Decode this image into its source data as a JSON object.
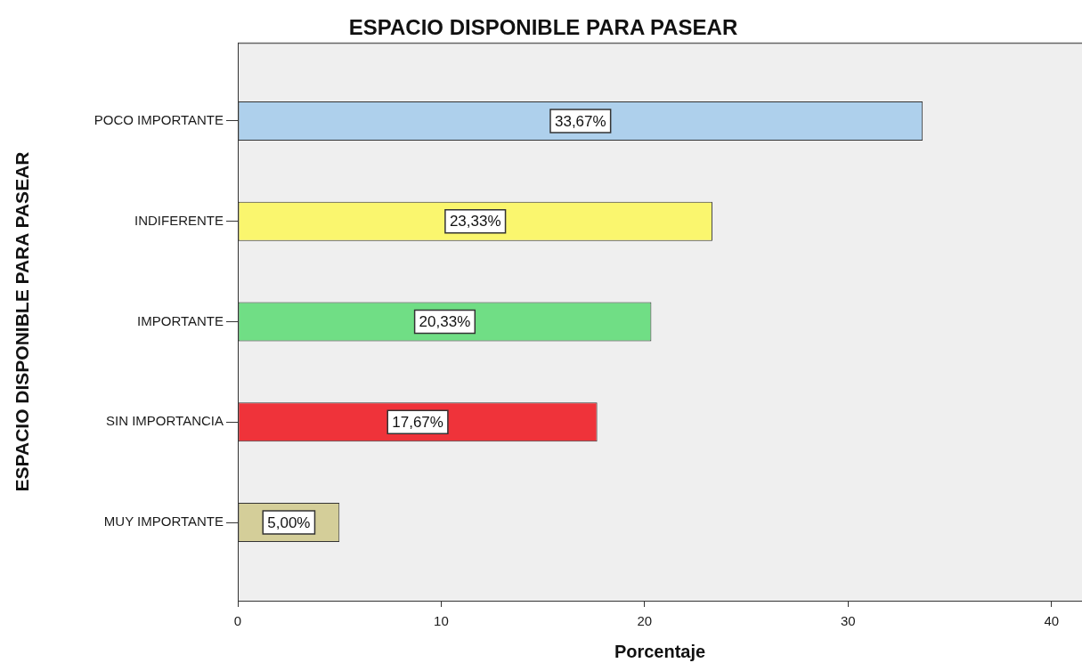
{
  "chart_data": {
    "type": "bar",
    "title": "ESPACIO DISPONIBLE PARA PASEAR",
    "xlabel": "Porcentaje",
    "ylabel": "ESPACIO DISPONIBLE PARA PASEAR",
    "orientation": "horizontal",
    "categories": [
      "POCO IMPORTANTE",
      "INDIFERENTE",
      "IMPORTANTE",
      "SIN IMPORTANCIA",
      "MUY IMPORTANTE"
    ],
    "values": [
      33.67,
      23.33,
      20.33,
      17.67,
      5.0
    ],
    "colors": [
      "#aed0ec",
      "#faf66e",
      "#70de85",
      "#ef333a",
      "#d4ce99"
    ],
    "value_labels": [
      "33,67%",
      "23,33%",
      "20,33%",
      "17,67%",
      "5,00%"
    ],
    "xlim": [
      0,
      41.5
    ],
    "xticks": [
      0,
      10,
      20,
      30,
      40
    ]
  }
}
